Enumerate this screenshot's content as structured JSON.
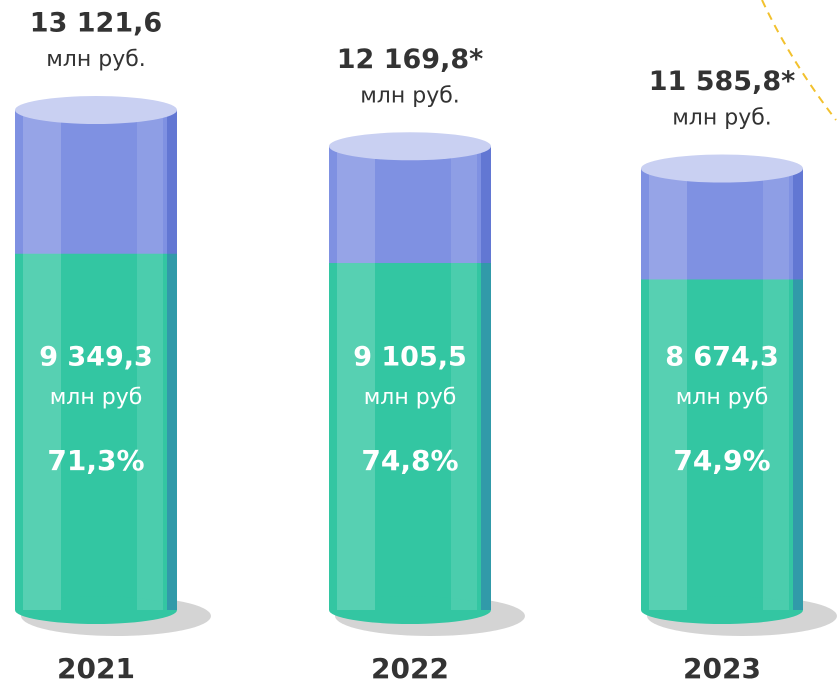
{
  "chart_data": {
    "type": "cylinder",
    "categories": [
      "2021",
      "2022",
      "2023"
    ],
    "totals": {
      "values": [
        13121.6,
        12169.8,
        11585.8
      ],
      "value_labels": [
        "13 121,6",
        "12 169,8*",
        "11 585,8*"
      ],
      "unit": "млн руб.",
      "color": "#7f91e2"
    },
    "parts": {
      "values": [
        9349.3,
        9105.5,
        8674.3
      ],
      "value_labels": [
        "9 349,3",
        "9 105,5",
        "8 674,3"
      ],
      "unit": "млн руб",
      "color": "#33c6a2"
    },
    "shares": {
      "values": [
        71.3,
        74.8,
        74.9
      ],
      "value_labels": [
        "71,3%",
        "74,8%",
        "74,9%"
      ]
    }
  }
}
